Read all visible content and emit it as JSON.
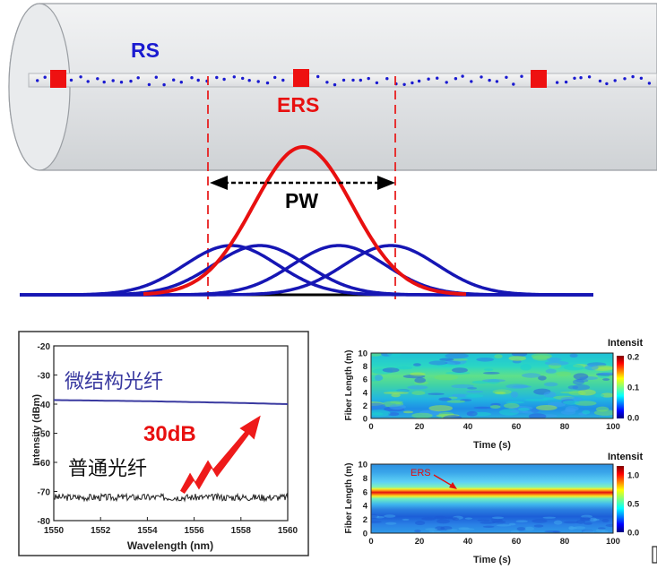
{
  "fiber_diagram": {
    "rs_label": "RS",
    "ers_label": "ERS",
    "pw_label": "PW",
    "colors": {
      "rs": "#1a1ad0",
      "ers": "#e81010",
      "pulse_blue": "#1616b4",
      "dash": "#e82020",
      "tube": "#e2e4e6"
    }
  },
  "spectrum_panel": {
    "label_microstructure": "微结构光纤",
    "label_standard": "普通光纤",
    "gain_label": "30dB",
    "chart_data": {
      "type": "line",
      "title": "",
      "xlabel": "Wavelength (nm)",
      "ylabel": "Intensity (dBm)",
      "x_ticks": [
        "1550",
        "1552",
        "1554",
        "1556",
        "1558",
        "1560"
      ],
      "y_ticks": [
        "-20",
        "-30",
        "-40",
        "-50",
        "-60",
        "-70",
        "-80"
      ],
      "xlim": [
        1550,
        1560
      ],
      "ylim": [
        -80,
        -20
      ],
      "series": [
        {
          "name": "微结构光纤",
          "x": [
            1550,
            1552,
            1554,
            1556,
            1558,
            1560
          ],
          "y": [
            -38.6,
            -38.8,
            -39.0,
            -39.3,
            -39.6,
            -40.0
          ],
          "color": "#3a3aa0"
        },
        {
          "name": "普通光纤",
          "x": [
            1550,
            1552,
            1554,
            1556,
            1558,
            1560
          ],
          "y": [
            -72,
            -72,
            -72,
            -72,
            -72,
            -72
          ],
          "color": "#222222"
        }
      ]
    }
  },
  "heatmap_top": {
    "chart_data": {
      "type": "heatmap",
      "xlabel": "Time (s)",
      "ylabel": "Fiber Length (m)",
      "x_ticks": [
        "0",
        "20",
        "40",
        "60",
        "80",
        "100"
      ],
      "y_ticks": [
        "10",
        "8",
        "6",
        "4",
        "2",
        "0"
      ],
      "xlim": [
        0,
        100
      ],
      "ylim": [
        0,
        10
      ],
      "colorbar_title": "Intensit",
      "colorbar_ticks": [
        "0.2",
        "0.1",
        "0.0"
      ]
    }
  },
  "heatmap_bottom": {
    "annotation": "ERS",
    "chart_data": {
      "type": "heatmap",
      "xlabel": "Time (s)",
      "ylabel": "Fiber Length (m)",
      "x_ticks": [
        "0",
        "20",
        "40",
        "60",
        "80",
        "100"
      ],
      "y_ticks": [
        "10",
        "8",
        "6",
        "4",
        "2",
        "0"
      ],
      "xlim": [
        0,
        100
      ],
      "ylim": [
        0,
        10
      ],
      "colorbar_title": "Intensit",
      "colorbar_ticks": [
        "1.0",
        "0.5",
        "0.0"
      ]
    }
  }
}
